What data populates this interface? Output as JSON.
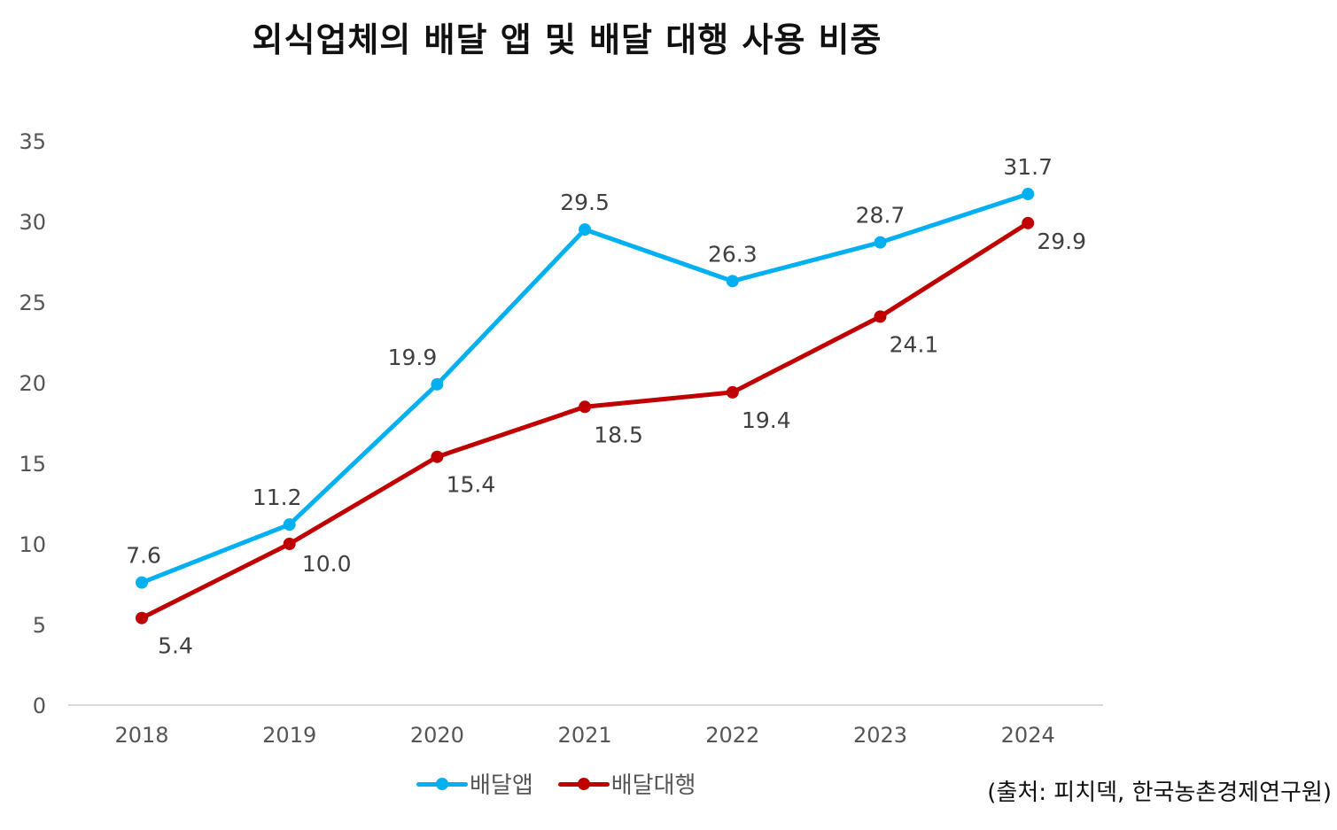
{
  "chart_data": {
    "type": "line",
    "title": "외식업체의 배달 앱 및 배달 대행 사용 비중",
    "xlabel": "",
    "ylabel": "",
    "categories": [
      "2018",
      "2019",
      "2020",
      "2021",
      "2022",
      "2023",
      "2024"
    ],
    "ylim": [
      0,
      35
    ],
    "yticks": [
      "0",
      "5",
      "10",
      "15",
      "20",
      "25",
      "30",
      "35"
    ],
    "grid": false,
    "legend_position": "bottom",
    "series": [
      {
        "name": "배달앱",
        "color": "#00B0F0",
        "values": [
          7.6,
          11.2,
          19.9,
          29.5,
          26.3,
          28.7,
          31.7
        ],
        "labels": [
          "7.6",
          "11.2",
          "19.9",
          "29.5",
          "26.3",
          "28.7",
          "31.7"
        ],
        "label_position": "above"
      },
      {
        "name": "배달대행",
        "color": "#C00000",
        "values": [
          5.4,
          10.0,
          15.4,
          18.5,
          19.4,
          24.1,
          29.9
        ],
        "labels": [
          "5.4",
          "10.0",
          "15.4",
          "18.5",
          "19.4",
          "24.1",
          "29.9"
        ],
        "label_position": "below"
      }
    ],
    "source_note": "(출처: 피치덱, 한국농촌경제연구원)"
  }
}
